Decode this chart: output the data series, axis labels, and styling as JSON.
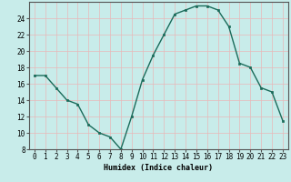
{
  "x": [
    0,
    1,
    2,
    3,
    4,
    5,
    6,
    7,
    8,
    9,
    10,
    11,
    12,
    13,
    14,
    15,
    16,
    17,
    18,
    19,
    20,
    21,
    22,
    23
  ],
  "y": [
    17,
    17,
    15.5,
    14,
    13.5,
    11,
    10,
    9.5,
    8,
    12,
    16.5,
    19.5,
    22,
    24.5,
    25,
    25.5,
    25.5,
    25,
    23,
    18.5,
    18,
    15.5,
    15,
    11.5
  ],
  "line_color": "#1a6b5a",
  "marker": "s",
  "markersize": 2,
  "linewidth": 1.0,
  "xlabel": "Humidex (Indice chaleur)",
  "xlabel_fontsize": 6,
  "bg_color": "#c8ecea",
  "grid_color": "#e8b8b8",
  "axes_color": "#555555",
  "ylim": [
    8,
    26
  ],
  "xlim": [
    -0.5,
    23.5
  ],
  "yticks": [
    8,
    10,
    12,
    14,
    16,
    18,
    20,
    22,
    24
  ],
  "xticks": [
    0,
    1,
    2,
    3,
    4,
    5,
    6,
    7,
    8,
    9,
    10,
    11,
    12,
    13,
    14,
    15,
    16,
    17,
    18,
    19,
    20,
    21,
    22,
    23
  ],
  "tick_fontsize": 5.5
}
